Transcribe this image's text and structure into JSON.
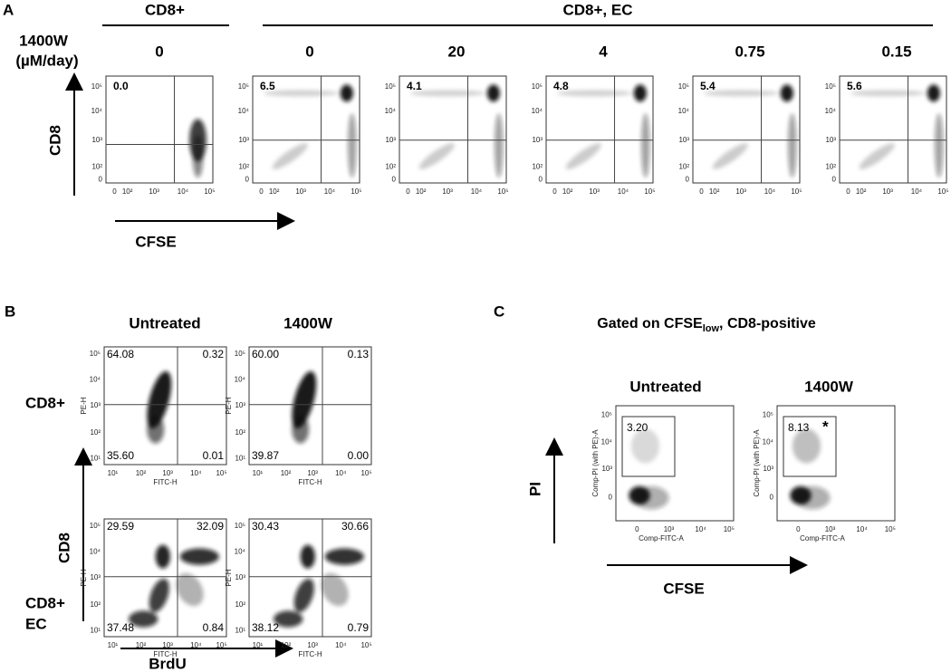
{
  "panel_a": {
    "label": "A",
    "group_labels": [
      "CD8+",
      "CD8+, EC"
    ],
    "row_label": [
      "1400W",
      "(µM/day)"
    ],
    "doses": [
      "0",
      "0",
      "20",
      "4",
      "0.75",
      "0.15"
    ],
    "quadrant_values": [
      "0.0",
      "6.5",
      "4.1",
      "4.8",
      "5.4",
      "5.6"
    ],
    "y_ticks": [
      "10⁵",
      "10⁴",
      "10³",
      "10²",
      "0"
    ],
    "x_ticks": [
      "0",
      "10²",
      "10³",
      "10⁴",
      "10⁵"
    ],
    "y_axis_label": "CD8",
    "x_axis_label": "CFSE"
  },
  "panel_b": {
    "label": "B",
    "column_labels": [
      "Untreated",
      "1400W"
    ],
    "row_labels": [
      [
        "CD8+"
      ],
      [
        "CD8+",
        "EC"
      ]
    ],
    "plots": [
      {
        "upper_left": "64.08",
        "upper_right": "0.32",
        "lower_left": "35.60",
        "lower_right": "0.01"
      },
      {
        "upper_left": "60.00",
        "upper_right": "0.13",
        "lower_left": "39.87",
        "lower_right": "0.00"
      },
      {
        "upper_left": "29.59",
        "upper_right": "32.09",
        "lower_left": "37.48",
        "lower_right": "0.84"
      },
      {
        "upper_left": "30.43",
        "upper_right": "30.66",
        "lower_left": "38.12",
        "lower_right": "0.79"
      }
    ],
    "y_ticks": [
      "10⁵",
      "10⁴",
      "10³",
      "10²",
      "10¹"
    ],
    "x_ticks": [
      "10¹",
      "10²",
      "10³",
      "10⁴",
      "10⁵"
    ],
    "plot_y_label": "PE-H",
    "plot_x_label": "FITC-H",
    "y_axis_label": "CD8",
    "x_axis_label": "BrdU"
  },
  "panel_c": {
    "label": "C",
    "title": [
      "Gated on CFSE",
      "low",
      ", CD8-positive"
    ],
    "column_labels": [
      "Untreated",
      "1400W"
    ],
    "gate_values": [
      "3.20",
      "8.13"
    ],
    "significance": "*",
    "y_ticks": [
      "10⁵",
      "10⁴",
      "10³",
      "0"
    ],
    "x_ticks": [
      "0",
      "10³",
      "10⁴",
      "10⁵"
    ],
    "plot_y_label": "Comp-PI (with PE)-A",
    "plot_x_label": "Comp-FITC-A",
    "y_axis_label": "PI",
    "x_axis_label": "CFSE"
  }
}
